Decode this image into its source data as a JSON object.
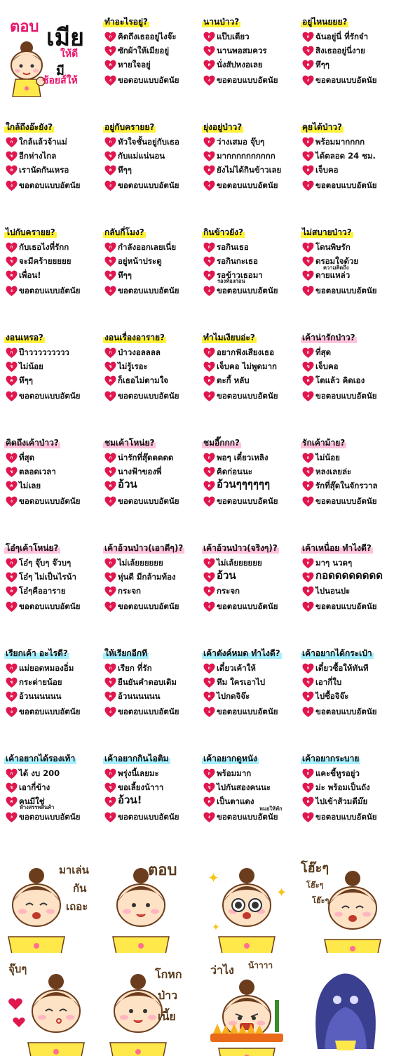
{
  "header": {
    "top": "ตอบ",
    "big": "เมีย",
    "line3": "ให้ดี",
    "line4a": "มี",
    "line4b": "ช้อยส์ให้"
  },
  "choice_markers": [
    "ก",
    "ข",
    "ค",
    "ง"
  ],
  "cards": [
    {
      "q": "ทำอะไรอยู่?",
      "hl": "yellow",
      "opts": [
        "คิดถึงเธออยู่ไงจ๊ะ",
        "ซักผ้าให้เมียอยู่",
        "หายใจอยู่",
        "ขอตอบแบบอัตนัย"
      ]
    },
    {
      "q": "นานป่าว?",
      "hl": "yellow",
      "opts": [
        "แป๊บเดียว",
        "นานพอสมควร",
        "นั่งสัปหงอเลย",
        "ขอตอบแบบอัตนัย"
      ]
    },
    {
      "q": "อยู่ไหนยยย?",
      "hl": "yellow",
      "opts": [
        "ฉันอยู่นี่ ที่รักจ๋า",
        "สิงเธออยู่นี่งาย",
        "หึๆๆ",
        "ขอตอบแบบอัตนัย"
      ]
    },
    {
      "q": "ใกล้ถึงอ๊ะยัง?",
      "hl": "yellow",
      "opts": [
        "ใกล้แล้วจ้าแม่",
        "อีกห่างไกล",
        "เรานัดกันเหรอ",
        "ขอตอบแบบอัตนัย"
      ]
    },
    {
      "q": "อยู่กับครายย?",
      "hl": "yellow",
      "opts": [
        "หัวใจชั้นอยู่กับเธอ",
        "กับแม่แน่นอน",
        "หึๆๆ",
        "ขอตอบแบบอัตนัย"
      ]
    },
    {
      "q": "ยุ่งอยู่ป่าว?",
      "hl": "yellow",
      "opts": [
        "ว่างเสมอ จุ๊บๆ",
        "มากกกกกกกกกก",
        "ยังไม่ได้กินข้าวเลย",
        "ขอตอบแบบอัตนัย"
      ]
    },
    {
      "q": "คุยได้ป่าว?",
      "hl": "yellow",
      "opts": [
        "พร้อมมากกกก",
        "ได้ตลอด 24 ชม.",
        "เจ็บคอ",
        "ขอตอบแบบอัตนัย"
      ]
    },
    {
      "q": "ไปกับครายย?",
      "hl": "yellow",
      "opts": [
        "กับเธอไงที่รักก",
        "จะมีคร้ายยยยย",
        "เพื่อน!",
        "ขอตอบแบบอัตนัย"
      ]
    },
    {
      "q": "กลับกี่โมง?",
      "hl": "yellow",
      "opts": [
        "กำลังออกเลยเนี่ย",
        "อยู่หน้าประตู",
        "หึๆๆ",
        "ขอตอบแบบอัตนัย"
      ]
    },
    {
      "q": "กินข้าวยัง?",
      "hl": "yellow",
      "opts": [
        "รอกินเธอ",
        "รอกินกะเธอ",
        "รอข้าวเธอมา",
        "ขอตอบแบบอัตนัย"
      ],
      "sub2": "รองท้องก่อน"
    },
    {
      "q": "ไม่สบายป่าว?",
      "hl": "yellow",
      "opts": [
        "โดนพิษรัก",
        "ตรอมใจด้วย",
        "ตายแหล่ว",
        "ขอตอบแบบอัตนัย"
      ],
      "sub3": "ความคิดถึง"
    },
    {
      "q": "งอนเหรอ?",
      "hl": "yellow",
      "opts": [
        "ป๊าววววววววว",
        "ไม่น้อย",
        "หึๆๆ",
        "ขอตอบแบบอัตนัย"
      ]
    },
    {
      "q": "งอนเรื่องอาราย?",
      "hl": "yellow",
      "opts": [
        "ป่าวงอลลลล",
        "ไม่รู้เรอะ",
        "ก็เธอไม่ตามใจ",
        "ขอตอบแบบอัตนัย"
      ]
    },
    {
      "q": "ทำไมเงียบอ่ะ?",
      "hl": "yellow",
      "opts": [
        "อยากฟังเสียงเธอ",
        "เจ็บคอ ไม่พูดมาก",
        "ตะกี้ หลับ",
        "ขอตอบแบบอัตนัย"
      ]
    },
    {
      "q": "เค้าน่ารักป่าว?",
      "hl": "pink",
      "opts": [
        "ที่สุด",
        "เจ็บคอ",
        "โตแล้ว คิดเอง",
        "ขอตอบแบบอัตนัย"
      ]
    },
    {
      "q": "คิดถึงเค้าป่าว?",
      "hl": "pink",
      "opts": [
        "ที่สุด",
        "ตลอดเวลา",
        "ไม่เลย",
        "ขอตอบแบบอัตนัย"
      ]
    },
    {
      "q": "ชมเค้าโหน่ย?",
      "hl": "pink",
      "opts": [
        "น่ารักที่สุ๊ดดดดด",
        "นางฟ้าของพี่",
        "อ้วน",
        "ขอตอบแบบอัตนัย"
      ],
      "bigopt": 2
    },
    {
      "q": "ชมอี๊กกก?",
      "hl": "pink",
      "opts": [
        "พอๆ เดี๋ยวเหลิง",
        "คิดก่อนนะ",
        "อ้วนๆๆๆๆๆๆ",
        "ขอตอบแบบอัตนัย"
      ],
      "bigopt": 2
    },
    {
      "q": "รักเค้าม้าย?",
      "hl": "pink",
      "opts": [
        "ไม่น้อย",
        "หลงเลยล่ะ",
        "รักที่สุ๊ดในจักรวาล",
        "ขอตอบแบบอัตนัย"
      ]
    },
    {
      "q": "โอ๋ๆเค้าโหน่ย?",
      "hl": "pink",
      "opts": [
        "โอ๋ๆ จุ๊บๆ จ๊วบๆ",
        "โอ๋ๆ ไม่เป็นไรน้า",
        "โอ๋ๆคืออาราย",
        "ขอตอบแบบอัตนัย"
      ]
    },
    {
      "q": "เค้าอ้วนป่าว(เอาดีๆ)?",
      "hl": "pink",
      "opts": [
        "ไม่เล้ยยยยยย",
        "หุ่นดี มีกล้ามท้อง",
        "กระจก",
        "ขอตอบแบบอัตนัย"
      ]
    },
    {
      "q": "เค้าอ้วนป่าว(จริงๆ)?",
      "hl": "pink",
      "opts": [
        "ไม่เล้ยยยยยย",
        "อ้วน",
        "กระจก",
        "ขอตอบแบบอัตนัย"
      ],
      "bigopt": 1
    },
    {
      "q": "เค้าเหนื่อย ทำไงดี?",
      "hl": "pink",
      "opts": [
        "มาๆ นวดๆ",
        "กอดดดดดดดด",
        "ไปนอนปะ",
        "ขอตอบแบบอัตนัย"
      ],
      "bigopt": 1
    },
    {
      "q": "เรียกเค้า อะไรดี?",
      "hl": "cyan",
      "opts": [
        "แม่ยอดหมองอิ่ม",
        "กระต่ายน้อย",
        "อ้วนนนนนน",
        "ขอตอบแบบอัตนัย"
      ]
    },
    {
      "q": "ให้เรียกอีกที",
      "hl": "cyan",
      "opts": [
        "เรียก ที่รัก",
        "ยืนยันคำตอบเดิม",
        "อ้วนนนนนน",
        "ขอตอบแบบอัตนัย"
      ]
    },
    {
      "q": "เค้าตังค์หมด ทำไงดี?",
      "hl": "cyan",
      "opts": [
        "เดี๋ยวเค้าให้",
        "หึม ใครเอาไป",
        "ไปกดจิจ๊ะ",
        "ขอตอบแบบอัตนัย"
      ]
    },
    {
      "q": "เค้าอยากได้กระเป๋า",
      "hl": "cyan",
      "opts": [
        "เดี๋ยวซื้อให้ทันที",
        "เอากี่ใบ",
        "ไปซื้อจิจ๊ะ",
        "ขอตอบแบบอัตนัย"
      ]
    },
    {
      "q": "เค้าอยากได้รองเท้า",
      "hl": "cyan",
      "opts": [
        "ได้ งบ 200",
        "เอากี่ข้าง",
        "คนมีใช่",
        "ขอตอบแบบอัตนัย"
      ],
      "sub2": "ห้างสรรพสินค้า"
    },
    {
      "q": "เค้าอยากกินไอติม",
      "hl": "cyan",
      "opts": [
        "พรุ่งนี้เลยมะ",
        "ขอเลี้ยงน้าาา",
        "อ้วน!",
        "ขอตอบแบบอัตนัย"
      ],
      "bigopt": 2
    },
    {
      "q": "เค้าอยากดูหนัง",
      "hl": "cyan",
      "opts": [
        "พร้อมมาก",
        "ไปกันสองคนนะ",
        "เป็นตาแดง",
        "ขอตอบแบบอัตนัย"
      ],
      "sub2b": "หมอให้พัก"
    },
    {
      "q": "เค้าอยากระบาย",
      "hl": "cyan",
      "opts": [
        "แคะขี้หูรอยู่ว",
        "ม่ะ พร้อมเป็นถัง",
        "ไปเข้าส้วมดีม๊ย",
        "ขอตอบแบบอัตนัย"
      ]
    }
  ],
  "stickers": [
    {
      "name": "play-sticker",
      "texts": [
        "มาเล่น",
        "กัน",
        "เถอะ"
      ]
    },
    {
      "name": "answer-sticker",
      "texts": [
        "ตอบ"
      ]
    },
    {
      "name": "amazed-sticker",
      "texts": []
    },
    {
      "name": "laugh-sticker",
      "texts": [
        "โฮ๊ะๆ",
        "โฮ๊ะๆ",
        "โฮ๊ะๆ"
      ]
    },
    {
      "name": "kiss-sticker",
      "texts": [
        "จุ๊บๆ"
      ]
    },
    {
      "name": "lying-sticker",
      "texts": [
        "โกหก",
        "ป่าว",
        "เนี้ย"
      ]
    },
    {
      "name": "angry-sticker",
      "texts": [
        "ว่าไง",
        "น้าาาา"
      ]
    },
    {
      "name": "ghost-sticker",
      "texts": []
    }
  ],
  "colors": {
    "heart": "#e0174f",
    "title_magenta": "#e8136b",
    "hair": "#6b3d1d",
    "skin": "#fde2c5",
    "apron": "#ffe94a",
    "brown_text": "#5a3a1c"
  }
}
